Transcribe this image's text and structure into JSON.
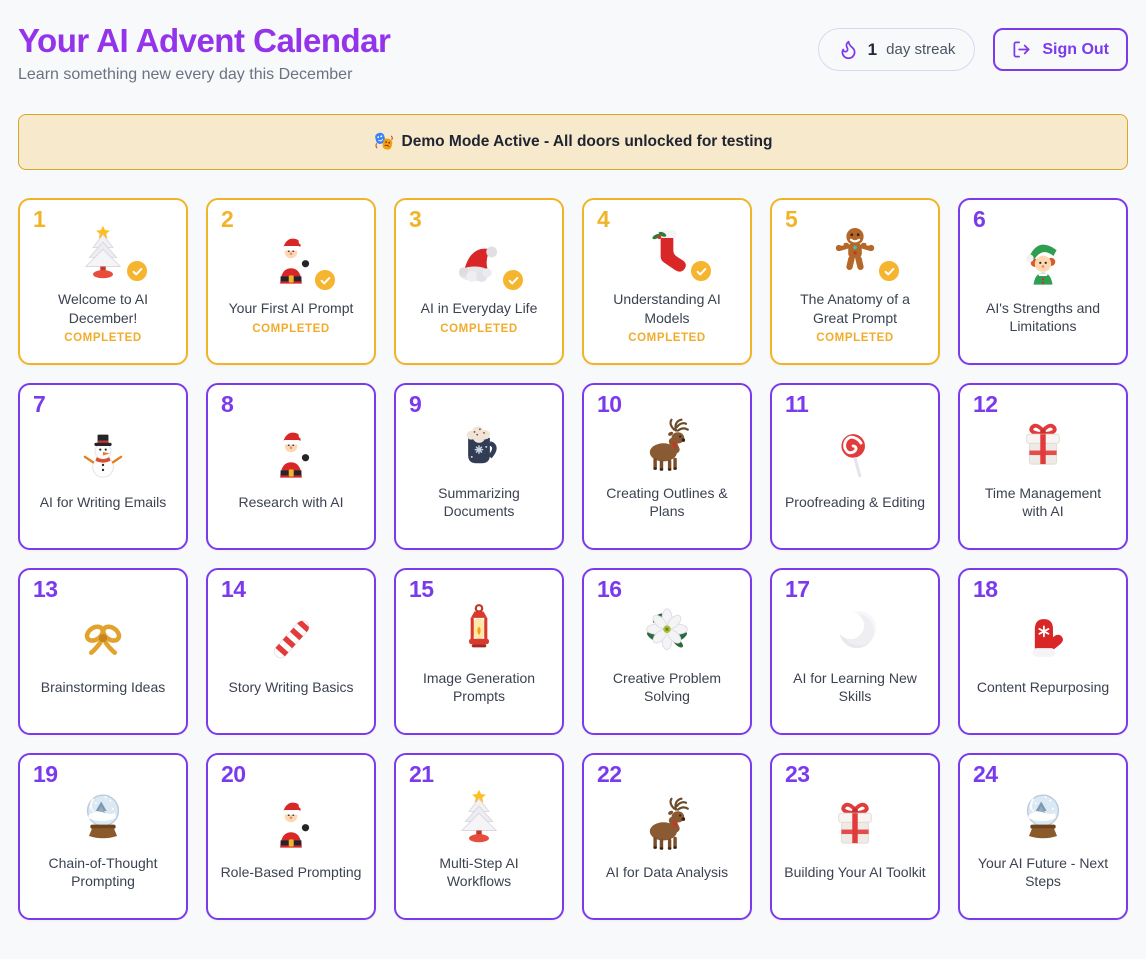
{
  "header": {
    "title": "Your AI Advent Calendar",
    "subtitle": "Learn something new every day this December",
    "streak": {
      "count": "1",
      "label": "day streak",
      "icon": "flame"
    },
    "sign_out_label": "Sign Out",
    "sign_out_icon": "sign-out"
  },
  "banner": {
    "icon": "theater-masks",
    "text": "Demo Mode Active - All doors unlocked for testing"
  },
  "status_completed_label": "COMPLETED",
  "colors": {
    "accent_purple": "#7c3aed",
    "title_purple": "#9333ea",
    "completed_amber": "#f0b429",
    "check_amber": "#f5b52e",
    "banner_bg": "#f6e9cc",
    "banner_border": "#d9a629",
    "page_bg": "#f8f9fa"
  },
  "cards": [
    {
      "number": "1",
      "title": "Welcome to AI December!",
      "icon": "christmas-tree",
      "completed": true
    },
    {
      "number": "2",
      "title": "Your First AI Prompt",
      "icon": "santa",
      "completed": true
    },
    {
      "number": "3",
      "title": "AI in Everyday Life",
      "icon": "santa-hat",
      "completed": true
    },
    {
      "number": "4",
      "title": "Understanding AI Models",
      "icon": "stocking",
      "completed": true
    },
    {
      "number": "5",
      "title": "The Anatomy of a Great Prompt",
      "icon": "gingerbread",
      "completed": true
    },
    {
      "number": "6",
      "title": "AI's Strengths and Limitations",
      "icon": "elf",
      "completed": false
    },
    {
      "number": "7",
      "title": "AI for Writing Emails",
      "icon": "snowman",
      "completed": false
    },
    {
      "number": "8",
      "title": "Research with AI",
      "icon": "santa",
      "completed": false
    },
    {
      "number": "9",
      "title": "Summarizing Documents",
      "icon": "cocoa-mug",
      "completed": false
    },
    {
      "number": "10",
      "title": "Creating Outlines & Plans",
      "icon": "reindeer",
      "completed": false
    },
    {
      "number": "11",
      "title": "Proofreading & Editing",
      "icon": "lollipop",
      "completed": false
    },
    {
      "number": "12",
      "title": "Time Management with AI",
      "icon": "gift",
      "completed": false
    },
    {
      "number": "13",
      "title": "Brainstorming Ideas",
      "icon": "gold-bow",
      "completed": false
    },
    {
      "number": "14",
      "title": "Story Writing Basics",
      "icon": "candy-cane",
      "completed": false
    },
    {
      "number": "15",
      "title": "Image Generation Prompts",
      "icon": "lantern",
      "completed": false
    },
    {
      "number": "16",
      "title": "Creative Problem Solving",
      "icon": "poinsettia",
      "completed": false
    },
    {
      "number": "17",
      "title": "AI for Learning New Skills",
      "icon": "crescent-moon",
      "completed": false
    },
    {
      "number": "18",
      "title": "Content Repurposing",
      "icon": "mitten",
      "completed": false
    },
    {
      "number": "19",
      "title": "Chain-of-Thought Prompting",
      "icon": "snow-globe",
      "completed": false
    },
    {
      "number": "20",
      "title": "Role-Based Prompting",
      "icon": "santa",
      "completed": false
    },
    {
      "number": "21",
      "title": "Multi-Step AI Workflows",
      "icon": "christmas-tree",
      "completed": false
    },
    {
      "number": "22",
      "title": "AI for Data Analysis",
      "icon": "reindeer",
      "completed": false
    },
    {
      "number": "23",
      "title": "Building Your AI Toolkit",
      "icon": "gift",
      "completed": false
    },
    {
      "number": "24",
      "title": "Your AI Future - Next Steps",
      "icon": "snow-globe",
      "completed": false
    }
  ]
}
